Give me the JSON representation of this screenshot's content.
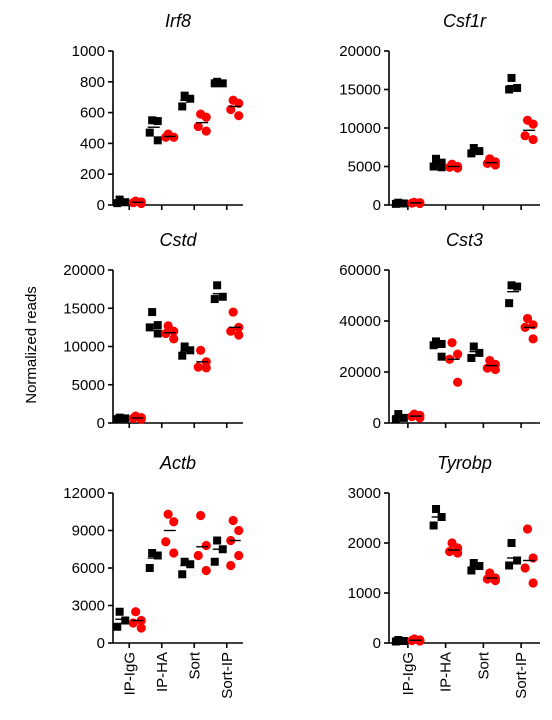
{
  "ylabel": "Normalized reads",
  "colors": {
    "group_a": "#000000",
    "group_b": "#ff0000",
    "mean_line": "#000000"
  },
  "categories": [
    "IP-IgG",
    "IP-HA",
    "Sort",
    "Sort-IP"
  ],
  "chart_data": [
    {
      "type": "scatter",
      "title": "Irf8",
      "ylim": [
        0,
        1000
      ],
      "yticks": [
        0,
        200,
        400,
        600,
        800,
        1000
      ],
      "yticklabels": [
        "0",
        "200",
        "400",
        "600",
        "800",
        "1000"
      ],
      "groups": [
        {
          "category": "IP-IgG",
          "black": [
            35,
            18,
            12
          ],
          "red": [
            25,
            20,
            15,
            10
          ],
          "means": [
            22,
            18
          ]
        },
        {
          "category": "IP-HA",
          "black": [
            550,
            545,
            470,
            420
          ],
          "red": [
            460,
            440,
            440
          ],
          "means": [
            505,
            445
          ]
        },
        {
          "category": "Sort",
          "black": [
            710,
            690,
            640
          ],
          "red": [
            590,
            570,
            510,
            480
          ],
          "means": [
            680,
            535
          ]
        },
        {
          "category": "Sort-IP",
          "black": [
            800,
            790,
            790
          ],
          "red": [
            680,
            660,
            620,
            580
          ],
          "means": [
            795,
            640
          ]
        }
      ]
    },
    {
      "type": "scatter",
      "title": "Csf1r",
      "ylim": [
        0,
        20000
      ],
      "yticks": [
        0,
        5000,
        10000,
        15000,
        20000
      ],
      "yticklabels": [
        "0",
        "5000",
        "10000",
        "15000",
        "20000"
      ],
      "groups": [
        {
          "category": "IP-IgG",
          "black": [
            300,
            200,
            150
          ],
          "red": [
            350,
            300,
            250,
            200
          ],
          "means": [
            220,
            280
          ]
        },
        {
          "category": "IP-HA",
          "black": [
            6000,
            5500,
            5000,
            4900
          ],
          "red": [
            5300,
            5000,
            4900,
            4800
          ],
          "means": [
            5400,
            5000
          ]
        },
        {
          "category": "Sort",
          "black": [
            7400,
            7000,
            6700
          ],
          "red": [
            6000,
            5600,
            5400,
            5200
          ],
          "means": [
            6900,
            5500
          ]
        },
        {
          "category": "Sort-IP",
          "black": [
            16500,
            15200,
            15000
          ],
          "red": [
            11000,
            10500,
            9000,
            8500
          ],
          "means": [
            15500,
            9700
          ]
        }
      ]
    },
    {
      "type": "scatter",
      "title": "Cstd",
      "ylim": [
        0,
        20000
      ],
      "yticks": [
        0,
        5000,
        10000,
        15000,
        20000
      ],
      "yticklabels": [
        "0",
        "5000",
        "10000",
        "15000",
        "20000"
      ],
      "groups": [
        {
          "category": "IP-IgG",
          "black": [
            700,
            600,
            500
          ],
          "red": [
            900,
            700,
            600,
            500
          ],
          "means": [
            600,
            650
          ]
        },
        {
          "category": "IP-HA",
          "black": [
            14500,
            12800,
            12500,
            11700
          ],
          "red": [
            12700,
            12000,
            11700,
            11000
          ],
          "means": [
            12900,
            11800
          ]
        },
        {
          "category": "Sort",
          "black": [
            10000,
            9500,
            8800
          ],
          "red": [
            9500,
            8000,
            7300,
            7200
          ],
          "means": [
            9400,
            8000
          ]
        },
        {
          "category": "Sort-IP",
          "black": [
            18000,
            16500,
            16200
          ],
          "red": [
            14500,
            12500,
            12000,
            11500
          ],
          "means": [
            16900,
            12500
          ]
        }
      ]
    },
    {
      "type": "scatter",
      "title": "Cst3",
      "ylim": [
        0,
        60000
      ],
      "yticks": [
        0,
        20000,
        40000,
        60000
      ],
      "yticklabels": [
        "0",
        "20000",
        "40000",
        "60000"
      ],
      "groups": [
        {
          "category": "IP-IgG",
          "black": [
            3500,
            2000,
            1500
          ],
          "red": [
            3500,
            3000,
            2500,
            2000
          ],
          "means": [
            2300,
            2700
          ]
        },
        {
          "category": "IP-HA",
          "black": [
            32000,
            31000,
            30500,
            26000
          ],
          "red": [
            31500,
            27000,
            25000,
            16000
          ],
          "means": [
            30000,
            25000
          ]
        },
        {
          "category": "Sort",
          "black": [
            30000,
            27500,
            25500
          ],
          "red": [
            24500,
            23000,
            21500,
            21000
          ],
          "means": [
            28000,
            22500
          ]
        },
        {
          "category": "Sort-IP",
          "black": [
            54000,
            53500,
            47000
          ],
          "red": [
            41000,
            38500,
            37500,
            33000
          ],
          "means": [
            51500,
            37500
          ]
        }
      ]
    },
    {
      "type": "scatter",
      "title": "Actb",
      "ylim": [
        0,
        12000
      ],
      "yticks": [
        0,
        3000,
        6000,
        9000,
        12000
      ],
      "yticklabels": [
        "0",
        "3000",
        "6000",
        "9000",
        "12000"
      ],
      "groups": [
        {
          "category": "IP-IgG",
          "black": [
            2500,
            1800,
            1300
          ],
          "red": [
            2500,
            1800,
            1600,
            1200
          ],
          "means": [
            1900,
            1800
          ]
        },
        {
          "category": "IP-HA",
          "black": [
            7200,
            7000,
            6000
          ],
          "red": [
            10300,
            9700,
            8100,
            7200
          ],
          "means": [
            6800,
            9000
          ]
        },
        {
          "category": "Sort",
          "black": [
            6500,
            6300,
            5500
          ],
          "red": [
            10200,
            7800,
            7000,
            5800
          ],
          "means": [
            6200,
            7700
          ]
        },
        {
          "category": "Sort-IP",
          "black": [
            8200,
            7500,
            6500
          ],
          "red": [
            9800,
            9000,
            8200,
            7000,
            6200
          ],
          "means": [
            7500,
            8200
          ]
        }
      ]
    },
    {
      "type": "scatter",
      "title": "Tyrobp",
      "ylim": [
        0,
        3000
      ],
      "yticks": [
        0,
        1000,
        2000,
        3000
      ],
      "yticklabels": [
        "0",
        "1000",
        "2000",
        "3000"
      ],
      "groups": [
        {
          "category": "IP-IgG",
          "black": [
            60,
            40,
            30
          ],
          "red": [
            80,
            60,
            50,
            40
          ],
          "means": [
            45,
            55
          ]
        },
        {
          "category": "IP-HA",
          "black": [
            2680,
            2520,
            2350
          ],
          "red": [
            2000,
            1900,
            1830,
            1800
          ],
          "means": [
            2520,
            1860
          ]
        },
        {
          "category": "Sort",
          "black": [
            1600,
            1540,
            1450
          ],
          "red": [
            1400,
            1300,
            1280,
            1250
          ],
          "means": [
            1530,
            1300
          ]
        },
        {
          "category": "Sort-IP",
          "black": [
            2000,
            1650,
            1550
          ],
          "red": [
            2280,
            1700,
            1500,
            1200
          ],
          "means": [
            1700,
            1650
          ]
        }
      ]
    }
  ]
}
